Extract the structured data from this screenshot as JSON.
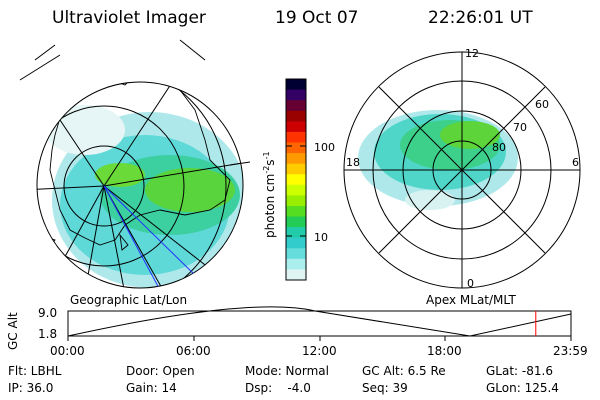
{
  "header": {
    "instrument": "Ultraviolet Imager",
    "date": "19 Oct 07",
    "time": "22:26:01 UT"
  },
  "geo_panel": {
    "label": "Geographic Lat/Lon"
  },
  "polar_panel": {
    "label": "Apex MLat/MLT",
    "mlt_labels": {
      "top": "12",
      "left": "18",
      "right": "6",
      "bottom": "0"
    },
    "mlat_labels": [
      "60",
      "70",
      "80"
    ]
  },
  "colorbar": {
    "title": "photon cm",
    "title_sup1": "-2",
    "title_mid": "s",
    "title_sup2": "-1",
    "ticks": [
      "100",
      "10"
    ],
    "colors": [
      "#000033",
      "#330066",
      "#660033",
      "#990000",
      "#cc0000",
      "#ff3300",
      "#ff6600",
      "#ff9900",
      "#ffcc00",
      "#ffff00",
      "#ccff00",
      "#99ee00",
      "#55dd22",
      "#22cc55",
      "#22ccaa",
      "#33cccc",
      "#66dddd",
      "#aaeeee",
      "#e0f4f4"
    ]
  },
  "orbit_plot": {
    "ylabel": "GC Alt",
    "yticks": [
      "9.0",
      "1.8"
    ],
    "xticks": [
      "00:00",
      "06:00",
      "12:00",
      "18:00",
      "23:59"
    ],
    "current_marker_fraction": 0.93,
    "marker_color": "#ff0000"
  },
  "footer": {
    "filter": "Flt: LBHL",
    "ip": "IP: 36.0",
    "door": "Door: Open",
    "gain": "Gain: 14",
    "mode": "Mode: Normal",
    "dsp": "Dsp:    -4.0",
    "gcalt": "GC Alt: 6.5 Re",
    "seq": "Seq: 39",
    "glat": "GLat: -81.6",
    "glon": "GLon: 125.4"
  }
}
